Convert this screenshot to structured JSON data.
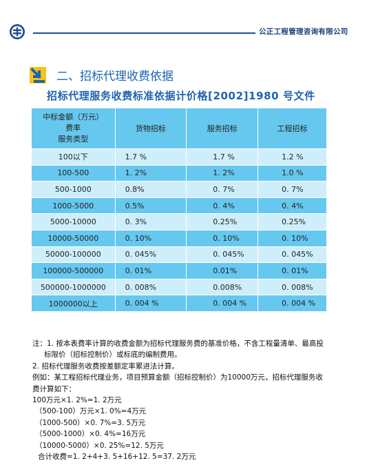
{
  "header": {
    "company": "公正工程管理咨询有限公司"
  },
  "section": {
    "heading": "二、招标代理收费依据",
    "subtitle": "招标代理服务收费标准依据计价格[2002]1980 号文件"
  },
  "table": {
    "corner_lines": [
      "中标金额（万元）",
      "费率",
      "服务类型"
    ],
    "columns": [
      "货物招标",
      "服务招标",
      "工程招标"
    ],
    "rows": [
      {
        "band": "100以下",
        "goods": "1.7 %",
        "service": "1.7 %",
        "engineering": "1.2 %"
      },
      {
        "band": "100-500",
        "goods": "1. 2%",
        "service": "1. 2%",
        "engineering": "1.0 %"
      },
      {
        "band": "500-1000",
        "goods": "0.8%",
        "service": "0. 7%",
        "engineering": "0. 7%"
      },
      {
        "band": "1000-5000",
        "goods": "0.5%",
        "service": "0. 4%",
        "engineering": "0. 4%"
      },
      {
        "band": "5000-10000",
        "goods": "0. 3%",
        "service": "0.25%",
        "engineering": "0.25%"
      },
      {
        "band": "10000-50000",
        "goods": "0. 10%",
        "service": "0. 10%",
        "engineering": "0. 10%"
      },
      {
        "band": "50000-100000",
        "goods": "0. 045%",
        "service": "0. 045%",
        "engineering": "0. 045%"
      },
      {
        "band": "100000-500000",
        "goods": "0. 01%",
        "service": "0.01%",
        "engineering": "0. 01%"
      },
      {
        "band": "500000-1000000",
        "goods": "0. 008%",
        "service": "0.008%",
        "engineering": "0. 008%"
      },
      {
        "band": "1000000以上",
        "goods": "0. 004 %",
        "service": "0. 004 %",
        "engineering": "0. 004 %"
      }
    ]
  },
  "notes": {
    "note1_line1": "注：1. 按本表费率计算的收费金额为招标代理服务费的基准价格，不含工程量清单、最高投",
    "note1_line2": "标限价（招标控制价）或标底的编制费用。",
    "note2": "2. 招标代理服务收费按差额定率累进法计算。",
    "example_line1": "例如：某工程招标代理业务，项目预算金额（招标控制价）为10000万元，招标代理服务收",
    "example_line2": "费计算如下：",
    "calc": [
      "100万元×1. 2%=1. 2万元",
      "（500-100）万元×1. 0%=4万元",
      "（1000-500）×0. 7%=3. 5万元",
      "（5000-1000）×0. 4%=16万元",
      "（10000-5000）×0. 25%=12. 5万元",
      "合计收费=1. 2+4+3. 5+16+12. 5=37. 2万元"
    ]
  },
  "colors": {
    "brand_blue": "#1d63b0",
    "rule_blue": "#1d4f8c",
    "table_dark": "#67c8ef",
    "table_light": "#cfeefb",
    "arrow_yellow": "#f5c31c"
  },
  "icons": {
    "logo": "company-logo-icon",
    "arrow": "arrow-down-right-icon"
  }
}
